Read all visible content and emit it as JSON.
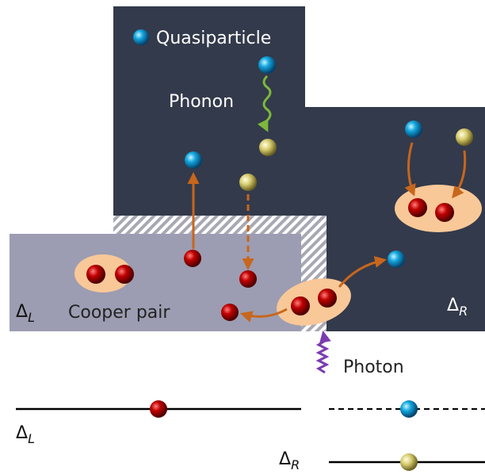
{
  "legend": {
    "quasiparticle": "Quasiparticle"
  },
  "labels": {
    "phonon": "Phonon",
    "cooper_pair": "Cooper pair",
    "photon": "Photon"
  },
  "regions": {
    "left": {
      "symbol": "Δ",
      "sub": "L"
    },
    "right": {
      "symbol": "Δ",
      "sub": "R"
    }
  },
  "levels": {
    "left": {
      "symbol": "Δ",
      "sub": "L"
    },
    "right": {
      "symbol": "Δ",
      "sub": "R"
    }
  }
}
